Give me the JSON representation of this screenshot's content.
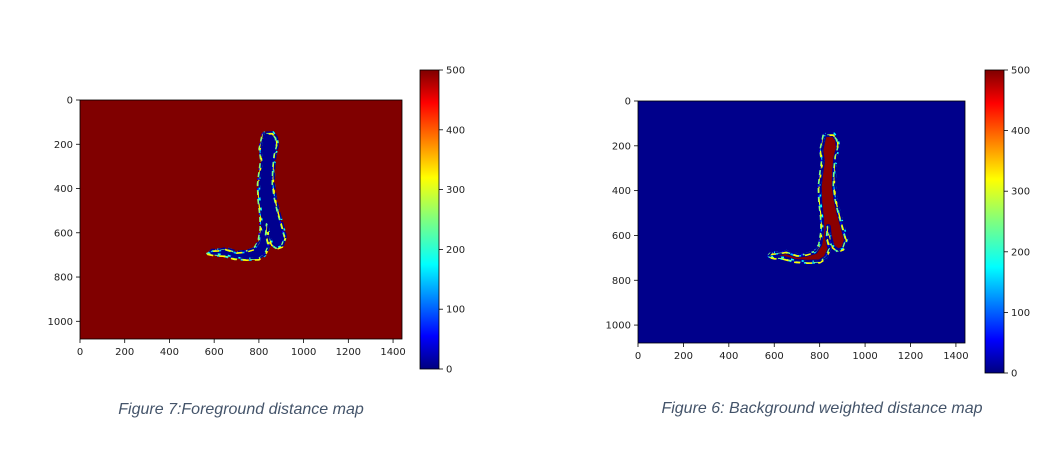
{
  "colors": {
    "background_fill": "#800000",
    "background_fill_right": "#00008b",
    "figure_band": "#00008f",
    "figure_core_right": "#8b0000",
    "edge_mix": [
      "#0000ff",
      "#00bfff",
      "#00ffff",
      "#7fff7f",
      "#ffff00",
      "#00008f"
    ],
    "colormap": [
      "#00007f",
      "#0000ff",
      "#007fff",
      "#00ffff",
      "#7fff7f",
      "#ffff00",
      "#ff7f00",
      "#ff0000",
      "#7f0000"
    ],
    "caption": "#44546a"
  },
  "chart_data": [
    {
      "type": "heatmap",
      "title": "",
      "xlabel": "",
      "ylabel": "",
      "x_range": [
        0,
        1440
      ],
      "y_range": [
        0,
        1080
      ],
      "x_ticks": [
        0,
        200,
        400,
        600,
        800,
        1000,
        1200,
        1400
      ],
      "y_ticks": [
        0,
        200,
        400,
        600,
        800,
        1000
      ],
      "y_inverted": true,
      "colorbar": {
        "min": 0,
        "max": 500,
        "ticks": [
          0,
          100,
          200,
          300,
          400,
          500
        ],
        "colormap": "jet"
      },
      "background_value": 500,
      "figure_inside_value": 0,
      "caption": "Figure 7:Foreground distance map"
    },
    {
      "type": "heatmap",
      "title": "",
      "xlabel": "",
      "ylabel": "",
      "x_range": [
        0,
        1440
      ],
      "y_range": [
        0,
        1080
      ],
      "x_ticks": [
        0,
        200,
        400,
        600,
        800,
        1000,
        1200,
        1400
      ],
      "y_ticks": [
        0,
        200,
        400,
        600,
        800,
        1000
      ],
      "y_inverted": true,
      "colorbar": {
        "min": 0,
        "max": 500,
        "ticks": [
          0,
          100,
          200,
          300,
          400,
          500
        ],
        "colormap": "jet"
      },
      "background_value": 0,
      "figure_inside_value": 500,
      "caption": "Figure 6: Background weighted distance map"
    }
  ]
}
